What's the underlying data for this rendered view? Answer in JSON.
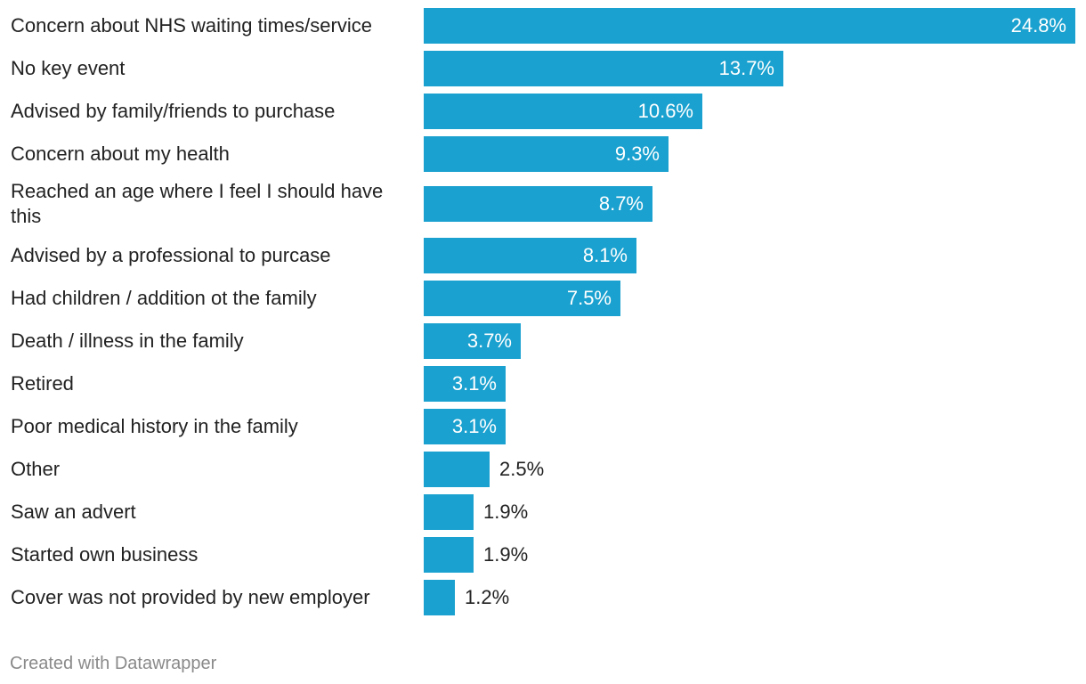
{
  "chart_data": {
    "type": "bar",
    "orientation": "horizontal",
    "title": "",
    "xlabel": "",
    "ylabel": "",
    "xlim": [
      0,
      24.8
    ],
    "grid": false,
    "value_suffix": "%",
    "bar_color": "#1aa1cf",
    "categories": [
      "Concern about NHS waiting times/service",
      "No key event",
      "Advised by family/friends to purchase",
      "Concern about my health",
      "Reached an age where I feel I should have this",
      "Advised by a professional to purcase",
      "Had children / addition ot the family",
      "Death / illness in the family",
      "Retired",
      "Poor medical history in the family",
      "Other",
      "Saw an advert",
      "Started own business",
      "Cover was not provided by new employer"
    ],
    "values": [
      24.8,
      13.7,
      10.6,
      9.3,
      8.7,
      8.1,
      7.5,
      3.7,
      3.1,
      3.1,
      2.5,
      1.9,
      1.9,
      1.2
    ],
    "labels": [
      "24.8%",
      "13.7%",
      "10.6%",
      "9.3%",
      "8.7%",
      "8.1%",
      "7.5%",
      "3.7%",
      "3.1%",
      "3.1%",
      "2.5%",
      "1.9%",
      "1.9%",
      "1.2%"
    ]
  },
  "footer": {
    "credit": "Created with Datawrapper"
  }
}
